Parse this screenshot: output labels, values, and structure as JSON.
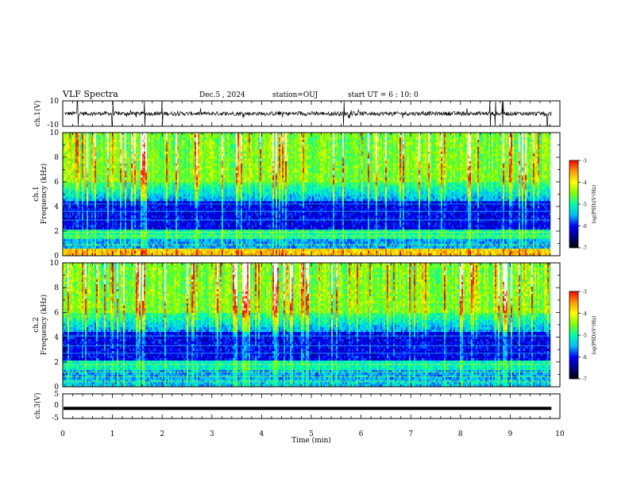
{
  "header": {
    "title": "VLF Spectra",
    "date": "Dec.5 , 2024",
    "station": "station=OUJ",
    "start": "start UT = 6 : 10: 0"
  },
  "chart_data": [
    {
      "type": "line",
      "name": "ch1-voltage",
      "ylabel": "ch.1(V)",
      "ylim": [
        -10,
        10
      ],
      "yticks": [
        "10",
        "-10"
      ],
      "xlim": [
        0,
        10
      ],
      "description_level": 0,
      "spike_times_min": [
        0.3,
        1.0,
        1.65,
        2.0,
        5.65,
        8.6,
        8.7,
        8.85,
        9.75
      ]
    },
    {
      "type": "heatmap",
      "name": "ch1-spectrogram",
      "ylabel": "ch.1",
      "ylabel2": "Frequency (kHz)",
      "ylim": [
        0,
        10
      ],
      "yticks": [
        "0",
        "2",
        "4",
        "6",
        "8",
        "10"
      ],
      "xlim": [
        0,
        9.83
      ],
      "colorbar": {
        "label": "log(PSD)(V²/Hz)",
        "ticks": [
          "-3",
          "-4",
          "-5",
          "-6",
          "-7"
        ],
        "range": [
          -7,
          -3
        ]
      }
    },
    {
      "type": "heatmap",
      "name": "ch2-spectrogram",
      "ylabel": "ch.2",
      "ylabel2": "Frequency (kHz)",
      "ylim": [
        0,
        10
      ],
      "yticks": [
        "0",
        "2",
        "4",
        "6",
        "8",
        "10"
      ],
      "xlim": [
        0,
        9.83
      ],
      "colorbar": {
        "label": "log(PSD)(V²/Hz)",
        "ticks": [
          "-3",
          "-4",
          "-5",
          "-6",
          "-7"
        ],
        "range": [
          -7,
          -3
        ]
      }
    },
    {
      "type": "line",
      "name": "ch3-voltage",
      "ylabel": "ch.3(V)",
      "ylim": [
        -5,
        5
      ],
      "yticks": [
        "5",
        "0",
        "-5"
      ],
      "level": -0.9,
      "xlim": [
        0,
        10
      ],
      "xlabel": "Time (min)",
      "xticks": [
        "0",
        "1",
        "2",
        "3",
        "4",
        "5",
        "6",
        "7",
        "8",
        "9",
        "10"
      ]
    }
  ],
  "colors": {
    "scale": [
      "#000000",
      "#00008b",
      "#0000ff",
      "#00bfff",
      "#00ffaa",
      "#7fff00",
      "#ffff00",
      "#ff9900",
      "#ff0000",
      "#ffffff"
    ]
  }
}
